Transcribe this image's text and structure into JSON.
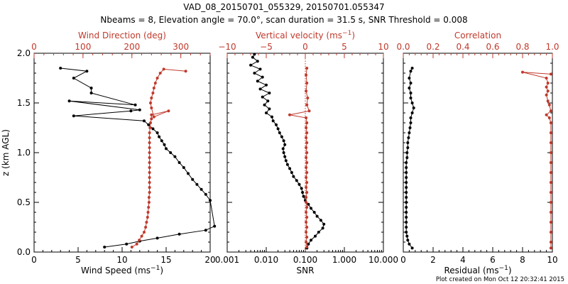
{
  "header": {
    "title": "VAD_08_20150701_055329, 20150701.055347",
    "subtitle": "Nbeams = 8, Elevation angle = 70.0°, scan duration = 31.5 s, SNR Threshold = 0.008"
  },
  "footer": {
    "plot_created": "Plot created on Mon Oct 12 20:32:41 2015"
  },
  "colors": {
    "primary": "#000000",
    "secondary": "#c0392b"
  },
  "chart_data": [
    {
      "type": "scatter",
      "name": "wind",
      "ylabel": "z (km AGL)",
      "ylim": [
        0,
        2.0
      ],
      "yticks": [
        "0.0",
        "0.5",
        "1.0",
        "1.5",
        "2.0"
      ],
      "bottom_axis": {
        "label_main": "Wind Speed (ms",
        "label_sup": "−1",
        "label_end": ")",
        "range": [
          0,
          20
        ],
        "ticks": [
          "0",
          "5",
          "10",
          "15",
          "20"
        ]
      },
      "top_axis": {
        "label_main": "Wind Direction (deg)",
        "label_sup": "",
        "label_end": "",
        "range": [
          0,
          360
        ],
        "ticks": [
          "0",
          "100",
          "200",
          "300"
        ]
      },
      "series": [
        {
          "name": "wind_speed",
          "axis": "bottom",
          "color": "black",
          "points": [
            [
              8.0,
              0.05
            ],
            [
              10.5,
              0.08
            ],
            [
              12.0,
              0.11
            ],
            [
              14.0,
              0.14
            ],
            [
              16.5,
              0.18
            ],
            [
              19.5,
              0.22
            ],
            [
              20.5,
              0.26
            ],
            [
              20.0,
              0.52
            ],
            [
              19.5,
              0.58
            ],
            [
              19.0,
              0.63
            ],
            [
              18.5,
              0.68
            ],
            [
              18.0,
              0.73
            ],
            [
              17.5,
              0.79
            ],
            [
              17.0,
              0.85
            ],
            [
              16.5,
              0.9
            ],
            [
              16.0,
              0.96
            ],
            [
              15.5,
              1.0
            ],
            [
              15.0,
              1.04
            ],
            [
              14.8,
              1.08
            ],
            [
              14.5,
              1.12
            ],
            [
              14.2,
              1.16
            ],
            [
              14.0,
              1.2
            ],
            [
              13.5,
              1.24
            ],
            [
              13.0,
              1.28
            ],
            [
              12.5,
              1.32
            ],
            [
              4.5,
              1.37
            ],
            [
              11.0,
              1.42
            ],
            [
              12.0,
              1.43
            ],
            [
              4.0,
              1.52
            ],
            [
              11.5,
              1.48
            ],
            [
              6.5,
              1.6
            ],
            [
              6.5,
              1.65
            ],
            [
              4.5,
              1.75
            ],
            [
              6.0,
              1.82
            ],
            [
              3.0,
              1.85
            ]
          ]
        },
        {
          "name": "wind_direction",
          "axis": "top",
          "color": "red",
          "points": [
            [
              200,
              0.05
            ],
            [
              210,
              0.08
            ],
            [
              215,
              0.12
            ],
            [
              220,
              0.16
            ],
            [
              225,
              0.2
            ],
            [
              228,
              0.25
            ],
            [
              230,
              0.3
            ],
            [
              232,
              0.35
            ],
            [
              233,
              0.4
            ],
            [
              234,
              0.45
            ],
            [
              235,
              0.5
            ],
            [
              235,
              0.55
            ],
            [
              236,
              0.6
            ],
            [
              236,
              0.65
            ],
            [
              236,
              0.7
            ],
            [
              236,
              0.75
            ],
            [
              236,
              0.8
            ],
            [
              236,
              0.85
            ],
            [
              236,
              0.9
            ],
            [
              236,
              0.95
            ],
            [
              236,
              1.0
            ],
            [
              236,
              1.05
            ],
            [
              236,
              1.1
            ],
            [
              236,
              1.15
            ],
            [
              236,
              1.2
            ],
            [
              237,
              1.25
            ],
            [
              238,
              1.3
            ],
            [
              240,
              1.34
            ],
            [
              240,
              1.38
            ],
            [
              275,
              1.42
            ],
            [
              245,
              1.36
            ],
            [
              240,
              1.45
            ],
            [
              238,
              1.5
            ],
            [
              240,
              1.55
            ],
            [
              243,
              1.6
            ],
            [
              245,
              1.65
            ],
            [
              248,
              1.7
            ],
            [
              252,
              1.75
            ],
            [
              258,
              1.8
            ],
            [
              265,
              1.84
            ],
            [
              310,
              1.82
            ]
          ]
        }
      ]
    },
    {
      "type": "scatter",
      "name": "vertical",
      "ylim": [
        0,
        2.0
      ],
      "bottom_axis": {
        "label_main": "SNR",
        "label_sup": "",
        "label_end": "",
        "range": [
          -3,
          1
        ],
        "scale": "log",
        "ticks": [
          "0.001",
          "0.010",
          "0.100",
          "1.000",
          "10.000"
        ]
      },
      "top_axis": {
        "label_main": "Vertical velocity (ms",
        "label_sup": "−1",
        "label_end": ")",
        "range": [
          -10,
          10
        ],
        "ticks": [
          "−10",
          "−5",
          "0",
          "5",
          "10"
        ]
      },
      "zero_line": 0,
      "series": [
        {
          "name": "snr",
          "axis": "bottom",
          "color": "black",
          "points": [
            [
              0.11,
              0.04
            ],
            [
              0.12,
              0.08
            ],
            [
              0.14,
              0.12
            ],
            [
              0.18,
              0.16
            ],
            [
              0.22,
              0.2
            ],
            [
              0.28,
              0.24
            ],
            [
              0.3,
              0.28
            ],
            [
              0.25,
              0.32
            ],
            [
              0.2,
              0.36
            ],
            [
              0.17,
              0.4
            ],
            [
              0.14,
              0.44
            ],
            [
              0.12,
              0.48
            ],
            [
              0.1,
              0.52
            ],
            [
              0.09,
              0.56
            ],
            [
              0.085,
              0.6
            ],
            [
              0.08,
              0.64
            ],
            [
              0.07,
              0.68
            ],
            [
              0.06,
              0.72
            ],
            [
              0.05,
              0.76
            ],
            [
              0.045,
              0.8
            ],
            [
              0.04,
              0.84
            ],
            [
              0.035,
              0.88
            ],
            [
              0.032,
              0.92
            ],
            [
              0.03,
              0.96
            ],
            [
              0.028,
              1.0
            ],
            [
              0.027,
              1.04
            ],
            [
              0.03,
              1.08
            ],
            [
              0.028,
              1.12
            ],
            [
              0.025,
              1.16
            ],
            [
              0.022,
              1.2
            ],
            [
              0.02,
              1.24
            ],
            [
              0.018,
              1.28
            ],
            [
              0.015,
              1.32
            ],
            [
              0.014,
              1.36
            ],
            [
              0.01,
              1.4
            ],
            [
              0.012,
              1.44
            ],
            [
              0.009,
              1.48
            ],
            [
              0.011,
              1.52
            ],
            [
              0.008,
              1.56
            ],
            [
              0.012,
              1.6
            ],
            [
              0.007,
              1.64
            ],
            [
              0.01,
              1.68
            ],
            [
              0.006,
              1.72
            ],
            [
              0.008,
              1.76
            ],
            [
              0.005,
              1.8
            ],
            [
              0.007,
              1.84
            ],
            [
              0.004,
              1.88
            ],
            [
              0.006,
              1.92
            ],
            [
              0.0045,
              1.96
            ],
            [
              0.005,
              1.99
            ]
          ]
        },
        {
          "name": "vertical_velocity",
          "axis": "top",
          "color": "red",
          "points": [
            [
              0.2,
              0.05
            ],
            [
              0.1,
              0.1
            ],
            [
              0.2,
              0.15
            ],
            [
              0.1,
              0.2
            ],
            [
              0.2,
              0.25
            ],
            [
              0.1,
              0.3
            ],
            [
              0.2,
              0.35
            ],
            [
              0.1,
              0.4
            ],
            [
              0.2,
              0.45
            ],
            [
              0.1,
              0.5
            ],
            [
              0.1,
              0.55
            ],
            [
              0.2,
              0.6
            ],
            [
              0.1,
              0.65
            ],
            [
              0.2,
              0.7
            ],
            [
              0.1,
              0.75
            ],
            [
              0.2,
              0.8
            ],
            [
              0.1,
              0.85
            ],
            [
              0.2,
              0.9
            ],
            [
              0.1,
              0.95
            ],
            [
              0.2,
              1.0
            ],
            [
              0.1,
              1.05
            ],
            [
              0.2,
              1.1
            ],
            [
              0.1,
              1.15
            ],
            [
              0.2,
              1.2
            ],
            [
              0.1,
              1.25
            ],
            [
              0.2,
              1.3
            ],
            [
              0.1,
              1.35
            ],
            [
              -2.0,
              1.38
            ],
            [
              0.5,
              1.42
            ],
            [
              0.2,
              1.48
            ],
            [
              0.3,
              1.55
            ],
            [
              0.1,
              1.62
            ],
            [
              0.2,
              1.7
            ],
            [
              0.1,
              1.78
            ],
            [
              0.2,
              1.85
            ]
          ]
        }
      ]
    },
    {
      "type": "scatter",
      "name": "correlation",
      "ylim": [
        0,
        2.0
      ],
      "bottom_axis": {
        "label_main": "Residual (ms",
        "label_sup": "−1",
        "label_end": ")",
        "range": [
          0,
          10
        ],
        "ticks": [
          "0",
          "2",
          "4",
          "6",
          "8",
          "10"
        ]
      },
      "top_axis": {
        "label_main": "Correlation",
        "label_sup": "",
        "label_end": "",
        "range": [
          0,
          1
        ],
        "ticks": [
          "0.0",
          "0.2",
          "0.4",
          "0.6",
          "0.8",
          "1.0"
        ]
      },
      "series": [
        {
          "name": "residual",
          "axis": "bottom",
          "color": "black",
          "points": [
            [
              0.6,
              0.04
            ],
            [
              0.4,
              0.08
            ],
            [
              0.3,
              0.12
            ],
            [
              0.25,
              0.16
            ],
            [
              0.2,
              0.2
            ],
            [
              0.2,
              0.25
            ],
            [
              0.2,
              0.3
            ],
            [
              0.2,
              0.35
            ],
            [
              0.2,
              0.4
            ],
            [
              0.2,
              0.45
            ],
            [
              0.2,
              0.5
            ],
            [
              0.2,
              0.55
            ],
            [
              0.2,
              0.6
            ],
            [
              0.2,
              0.65
            ],
            [
              0.2,
              0.7
            ],
            [
              0.2,
              0.75
            ],
            [
              0.2,
              0.8
            ],
            [
              0.2,
              0.85
            ],
            [
              0.2,
              0.9
            ],
            [
              0.25,
              0.95
            ],
            [
              0.25,
              1.0
            ],
            [
              0.3,
              1.05
            ],
            [
              0.3,
              1.1
            ],
            [
              0.35,
              1.15
            ],
            [
              0.4,
              1.2
            ],
            [
              0.45,
              1.25
            ],
            [
              0.5,
              1.3
            ],
            [
              0.5,
              1.35
            ],
            [
              0.6,
              1.4
            ],
            [
              0.7,
              1.45
            ],
            [
              0.6,
              1.5
            ],
            [
              0.5,
              1.55
            ],
            [
              0.5,
              1.6
            ],
            [
              0.4,
              1.65
            ],
            [
              0.5,
              1.7
            ],
            [
              0.4,
              1.75
            ],
            [
              0.5,
              1.82
            ],
            [
              0.6,
              1.85
            ]
          ]
        },
        {
          "name": "correlation",
          "axis": "top",
          "color": "red",
          "points": [
            [
              0.99,
              0.04
            ],
            [
              0.99,
              0.1
            ],
            [
              0.99,
              0.2
            ],
            [
              0.99,
              0.3
            ],
            [
              0.99,
              0.4
            ],
            [
              0.99,
              0.5
            ],
            [
              0.99,
              0.6
            ],
            [
              0.99,
              0.7
            ],
            [
              0.99,
              0.8
            ],
            [
              0.99,
              0.9
            ],
            [
              0.99,
              1.0
            ],
            [
              0.99,
              1.1
            ],
            [
              0.99,
              1.2
            ],
            [
              0.99,
              1.3
            ],
            [
              0.98,
              1.35
            ],
            [
              0.96,
              1.38
            ],
            [
              0.99,
              1.42
            ],
            [
              0.98,
              1.48
            ],
            [
              0.97,
              1.52
            ],
            [
              0.96,
              1.58
            ],
            [
              0.97,
              1.62
            ],
            [
              0.96,
              1.66
            ],
            [
              0.97,
              1.7
            ],
            [
              0.96,
              1.75
            ],
            [
              0.8,
              1.81
            ],
            [
              0.99,
              1.79
            ]
          ]
        }
      ]
    }
  ]
}
